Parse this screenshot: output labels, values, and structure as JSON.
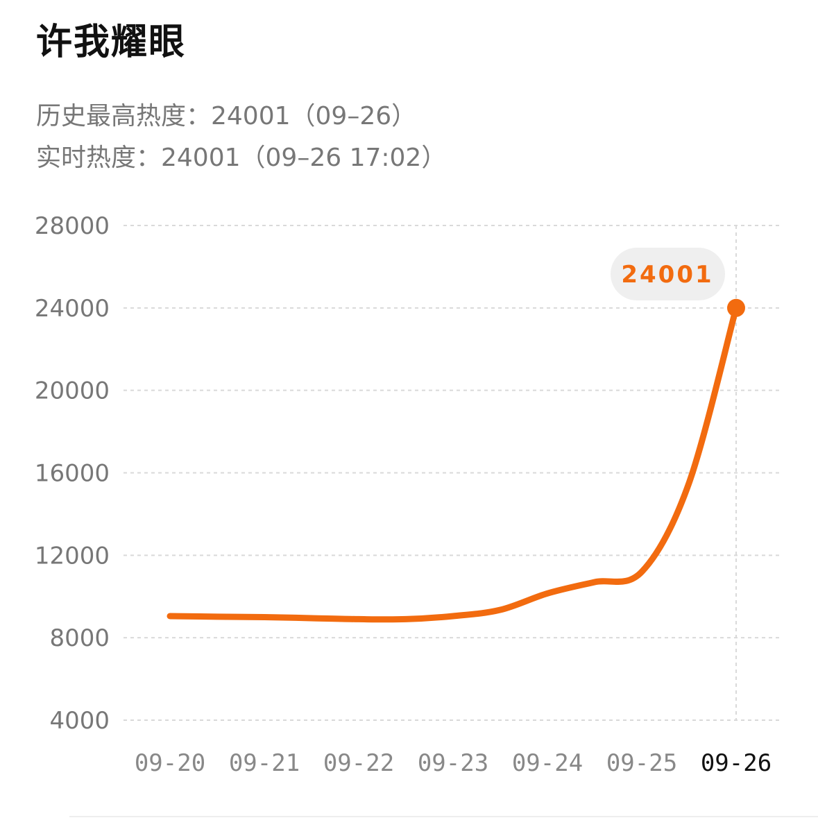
{
  "title": "许我耀眼",
  "history_peak": "历史最高热度：24001（09–26）",
  "realtime": "实时热度：24001（09–26 17:02）",
  "highlight_label": "24001",
  "colors": {
    "line": "#f26b0f",
    "grid": "#d9d9d9",
    "bubble_bg": "#efefef"
  },
  "chart_data": {
    "type": "line",
    "title": "",
    "xlabel": "",
    "ylabel": "",
    "categories": [
      "09-20",
      "09-21",
      "09-22",
      "09-23",
      "09-24",
      "09-25",
      "09-26"
    ],
    "x": [
      "09-20",
      "09-20 12:00",
      "09-21",
      "09-21 12:00",
      "09-22",
      "09-22 12:00",
      "09-23",
      "09-23 12:00",
      "09-24",
      "09-24 12:00",
      "09-25",
      "09-25 12:00",
      "09-26 17:02"
    ],
    "series": [
      {
        "values": [
          9050,
          9020,
          9000,
          8950,
          8900,
          8900,
          9050,
          9350,
          10150,
          10700,
          11200,
          15500,
          24001
        ]
      }
    ],
    "yticks": [
      4000,
      8000,
      12000,
      16000,
      20000,
      24000,
      28000
    ],
    "ylim": [
      4000,
      28000
    ],
    "grid": true,
    "highlight": {
      "x": "09-26",
      "value": 24001
    }
  }
}
